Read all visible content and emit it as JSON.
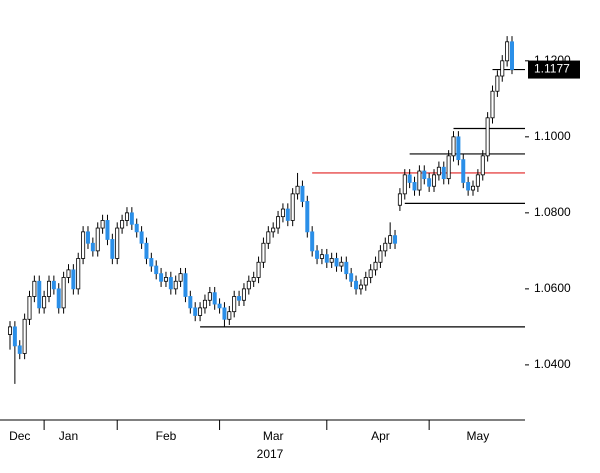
{
  "chart_data": {
    "type": "candlestick",
    "categories": [
      null,
      null,
      "Dec",
      null,
      null,
      null,
      null,
      null,
      null,
      null,
      null,
      null,
      "Jan",
      null,
      null,
      null,
      null,
      null,
      null,
      null,
      null,
      null,
      null,
      null,
      null,
      null,
      null,
      null,
      null,
      null,
      null,
      null,
      "Feb",
      null,
      null,
      null,
      null,
      null,
      null,
      null,
      null,
      null,
      null,
      null,
      null,
      null,
      null,
      null,
      null,
      null,
      null,
      null,
      null,
      null,
      "Mar",
      null,
      null,
      null,
      null,
      null,
      null,
      null,
      null,
      null,
      null,
      null,
      null,
      null,
      null,
      null,
      null,
      null,
      null,
      null,
      null,
      null,
      "Apr",
      null,
      null,
      null,
      null,
      null,
      null,
      null,
      null,
      null,
      null,
      null,
      null,
      null,
      null,
      null,
      null,
      null,
      null,
      null,
      "May",
      null,
      null,
      null,
      null,
      null,
      null
    ],
    "year_label": "2017",
    "ohlc": [
      [
        1.048,
        1.0515,
        1.044,
        1.05
      ],
      [
        1.05,
        1.0515,
        1.035,
        1.045
      ],
      [
        1.045,
        1.0465,
        1.0415,
        1.043
      ],
      [
        1.043,
        1.0535,
        1.0415,
        1.052
      ],
      [
        1.052,
        1.0595,
        1.0505,
        1.058
      ],
      [
        1.058,
        1.0635,
        1.0565,
        1.062
      ],
      [
        1.062,
        1.0635,
        1.0535,
        1.055
      ],
      [
        1.055,
        1.0595,
        1.0535,
        1.058
      ],
      [
        1.058,
        1.0635,
        1.0565,
        1.062
      ],
      [
        1.062,
        1.0635,
        1.0585,
        1.06
      ],
      [
        1.06,
        1.0615,
        1.0535,
        1.055
      ],
      [
        1.055,
        1.0645,
        1.0535,
        1.063
      ],
      [
        1.063,
        1.0665,
        1.0615,
        1.065
      ],
      [
        1.065,
        1.0665,
        1.0585,
        1.06
      ],
      [
        1.06,
        1.0695,
        1.0585,
        1.068
      ],
      [
        1.068,
        1.0765,
        1.0665,
        1.075
      ],
      [
        1.075,
        1.0765,
        1.0705,
        1.072
      ],
      [
        1.072,
        1.0735,
        1.0685,
        1.07
      ],
      [
        1.07,
        1.0775,
        1.0685,
        1.076
      ],
      [
        1.076,
        1.0795,
        1.0745,
        1.078
      ],
      [
        1.078,
        1.0795,
        1.0715,
        1.073
      ],
      [
        1.073,
        1.0745,
        1.0665,
        1.068
      ],
      [
        1.068,
        1.0775,
        1.0665,
        1.076
      ],
      [
        1.076,
        1.0795,
        1.0745,
        1.078
      ],
      [
        1.078,
        1.0815,
        1.0765,
        1.08
      ],
      [
        1.08,
        1.0815,
        1.0755,
        1.077
      ],
      [
        1.077,
        1.0785,
        1.0735,
        1.075
      ],
      [
        1.075,
        1.0765,
        1.0705,
        1.072
      ],
      [
        1.072,
        1.0735,
        1.0665,
        1.068
      ],
      [
        1.068,
        1.0695,
        1.0645,
        1.066
      ],
      [
        1.066,
        1.0675,
        1.0625,
        1.064
      ],
      [
        1.064,
        1.0655,
        1.0605,
        1.062
      ],
      [
        1.062,
        1.0645,
        1.0605,
        1.063
      ],
      [
        1.063,
        1.0645,
        1.0585,
        1.06
      ],
      [
        1.06,
        1.0635,
        1.0585,
        1.062
      ],
      [
        1.062,
        1.0655,
        1.0605,
        1.064
      ],
      [
        1.064,
        1.0655,
        1.0565,
        1.058
      ],
      [
        1.058,
        1.0595,
        1.0535,
        1.055
      ],
      [
        1.055,
        1.0565,
        1.0515,
        1.053
      ],
      [
        1.053,
        1.0565,
        1.0515,
        1.055
      ],
      [
        1.055,
        1.0585,
        1.0535,
        1.057
      ],
      [
        1.057,
        1.0605,
        1.0555,
        1.059
      ],
      [
        1.059,
        1.0605,
        1.0545,
        1.056
      ],
      [
        1.056,
        1.0575,
        1.0535,
        1.055
      ],
      [
        1.055,
        1.0565,
        1.05,
        1.052
      ],
      [
        1.052,
        1.0555,
        1.0505,
        1.054
      ],
      [
        1.054,
        1.0595,
        1.0525,
        1.058
      ],
      [
        1.058,
        1.0595,
        1.0555,
        1.057
      ],
      [
        1.057,
        1.0615,
        1.0555,
        1.06
      ],
      [
        1.06,
        1.0635,
        1.0585,
        1.062
      ],
      [
        1.062,
        1.0645,
        1.0605,
        1.063
      ],
      [
        1.063,
        1.0685,
        1.0615,
        1.067
      ],
      [
        1.067,
        1.0735,
        1.0655,
        1.072
      ],
      [
        1.072,
        1.0765,
        1.0705,
        1.075
      ],
      [
        1.075,
        1.0775,
        1.0735,
        1.076
      ],
      [
        1.076,
        1.0805,
        1.0745,
        1.079
      ],
      [
        1.079,
        1.0825,
        1.0775,
        1.081
      ],
      [
        1.081,
        1.0825,
        1.0765,
        1.078
      ],
      [
        1.078,
        1.0865,
        1.0765,
        1.085
      ],
      [
        1.085,
        1.0905,
        1.0835,
        1.087
      ],
      [
        1.087,
        1.0885,
        1.0815,
        1.083
      ],
      [
        1.083,
        1.0845,
        1.0735,
        1.075
      ],
      [
        1.075,
        1.0765,
        1.0685,
        1.07
      ],
      [
        1.07,
        1.0715,
        1.0665,
        1.068
      ],
      [
        1.068,
        1.0705,
        1.0665,
        1.069
      ],
      [
        1.069,
        1.0705,
        1.0655,
        1.067
      ],
      [
        1.067,
        1.0695,
        1.0655,
        1.068
      ],
      [
        1.068,
        1.0695,
        1.0645,
        1.066
      ],
      [
        1.066,
        1.0685,
        1.0645,
        1.067
      ],
      [
        1.067,
        1.0685,
        1.0625,
        1.064
      ],
      [
        1.064,
        1.0655,
        1.0605,
        1.062
      ],
      [
        1.062,
        1.0635,
        1.0585,
        1.06
      ],
      [
        1.06,
        1.0625,
        1.0585,
        1.061
      ],
      [
        1.061,
        1.0645,
        1.0595,
        1.063
      ],
      [
        1.063,
        1.0665,
        1.0615,
        1.065
      ],
      [
        1.065,
        1.0685,
        1.0635,
        1.067
      ],
      [
        1.067,
        1.0715,
        1.0655,
        1.07
      ],
      [
        1.07,
        1.0735,
        1.0685,
        1.072
      ],
      [
        1.072,
        1.0775,
        1.0705,
        1.074
      ],
      [
        1.074,
        1.0755,
        1.0705,
        1.072
      ],
      [
        1.082,
        1.0865,
        1.0805,
        1.085
      ],
      [
        1.085,
        1.0915,
        1.0835,
        1.09
      ],
      [
        1.09,
        1.0915,
        1.0865,
        1.088
      ],
      [
        1.088,
        1.0895,
        1.0845,
        1.086
      ],
      [
        1.086,
        1.0925,
        1.0845,
        1.091
      ],
      [
        1.091,
        1.0925,
        1.0875,
        1.089
      ],
      [
        1.089,
        1.0905,
        1.0855,
        1.087
      ],
      [
        1.087,
        1.0915,
        1.0855,
        1.09
      ],
      [
        1.09,
        1.0935,
        1.0885,
        1.092
      ],
      [
        1.092,
        1.0935,
        1.0875,
        1.089
      ],
      [
        1.089,
        1.0965,
        1.0875,
        1.095
      ],
      [
        1.095,
        1.1015,
        1.0935,
        1.1
      ],
      [
        1.1,
        1.1015,
        1.0925,
        1.094
      ],
      [
        1.094,
        1.0955,
        1.0865,
        1.088
      ],
      [
        1.088,
        1.0895,
        1.0845,
        1.086
      ],
      [
        1.086,
        1.0885,
        1.0845,
        1.087
      ],
      [
        1.087,
        1.0915,
        1.0855,
        1.09
      ],
      [
        1.09,
        1.0965,
        1.0885,
        1.095
      ],
      [
        1.095,
        1.1065,
        1.0935,
        1.105
      ],
      [
        1.105,
        1.1135,
        1.1035,
        1.112
      ],
      [
        1.112,
        1.1175,
        1.1105,
        1.116
      ],
      [
        1.116,
        1.1215,
        1.1145,
        1.12
      ],
      [
        1.12,
        1.1265,
        1.1185,
        1.125
      ],
      [
        1.125,
        1.1265,
        1.1165,
        1.1177
      ]
    ],
    "up_color": "#ffffff",
    "down_color": "#2b8fe8",
    "outline_color": "#000000",
    "levels": [
      {
        "value": 1.05,
        "start": 39,
        "color": "#000000"
      },
      {
        "value": 1.0905,
        "start": 62,
        "color": "#e02020"
      },
      {
        "value": 1.0825,
        "start": 81,
        "color": "#000000"
      },
      {
        "value": 1.0955,
        "start": 82,
        "color": "#000000"
      },
      {
        "value": 1.1022,
        "start": 91,
        "color": "#000000"
      },
      {
        "value": 1.1177,
        "start": 99,
        "color": "#000000"
      }
    ],
    "last_price": 1.1177,
    "ylim": [
      1.0255,
      1.136
    ],
    "yticks": [
      {
        "value": 1.04,
        "label": "1.0400"
      },
      {
        "value": 1.06,
        "label": "1.0600"
      },
      {
        "value": 1.08,
        "label": "1.0800"
      },
      {
        "value": 1.1,
        "label": "1.1000"
      },
      {
        "value": 1.12,
        "label": "1.1200"
      }
    ]
  }
}
